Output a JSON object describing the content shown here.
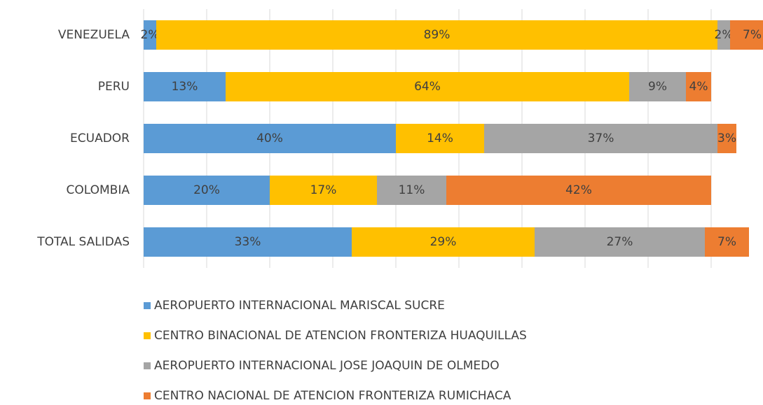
{
  "chart_data": {
    "type": "stacked-barh",
    "categories": [
      "VENEZUELA",
      "PERU",
      "ECUADOR",
      "COLOMBIA",
      "TOTAL SALIDAS"
    ],
    "series": [
      {
        "name": "AEROPUERTO INTERNACIONAL MARISCAL SUCRE",
        "color": "#5b9bd5",
        "values": [
          2,
          13,
          40,
          20,
          33
        ],
        "value_labels": [
          "2%",
          "13%",
          "40%",
          "20%",
          "33%"
        ]
      },
      {
        "name": "CENTRO BINACIONAL DE ATENCION FRONTERIZA HUAQUILLAS",
        "color": "#ffc000",
        "values": [
          89,
          64,
          14,
          17,
          29
        ],
        "value_labels": [
          "89%",
          "64%",
          "14%",
          "17%",
          "29%"
        ]
      },
      {
        "name": "AEROPUERTO INTERNACIONAL JOSE JOAQUIN DE OLMEDO",
        "color": "#a5a5a5",
        "values": [
          2,
          9,
          37,
          11,
          27
        ],
        "value_labels": [
          "2%",
          "9%",
          "37%",
          "11%",
          "27%"
        ]
      },
      {
        "name": "CENTRO NACIONAL DE ATENCION FRONTERIZA RUMICHACA",
        "color": "#ed7d31",
        "values": [
          7,
          4,
          3,
          42,
          7
        ],
        "value_labels": [
          "7%",
          "4%",
          "3%",
          "42%",
          "7%"
        ]
      }
    ],
    "xlim": [
      0,
      100
    ],
    "xticks": [
      0,
      10,
      20,
      30,
      40,
      50,
      60,
      70,
      80,
      90,
      100
    ],
    "grid": true,
    "legend": "bottom"
  }
}
